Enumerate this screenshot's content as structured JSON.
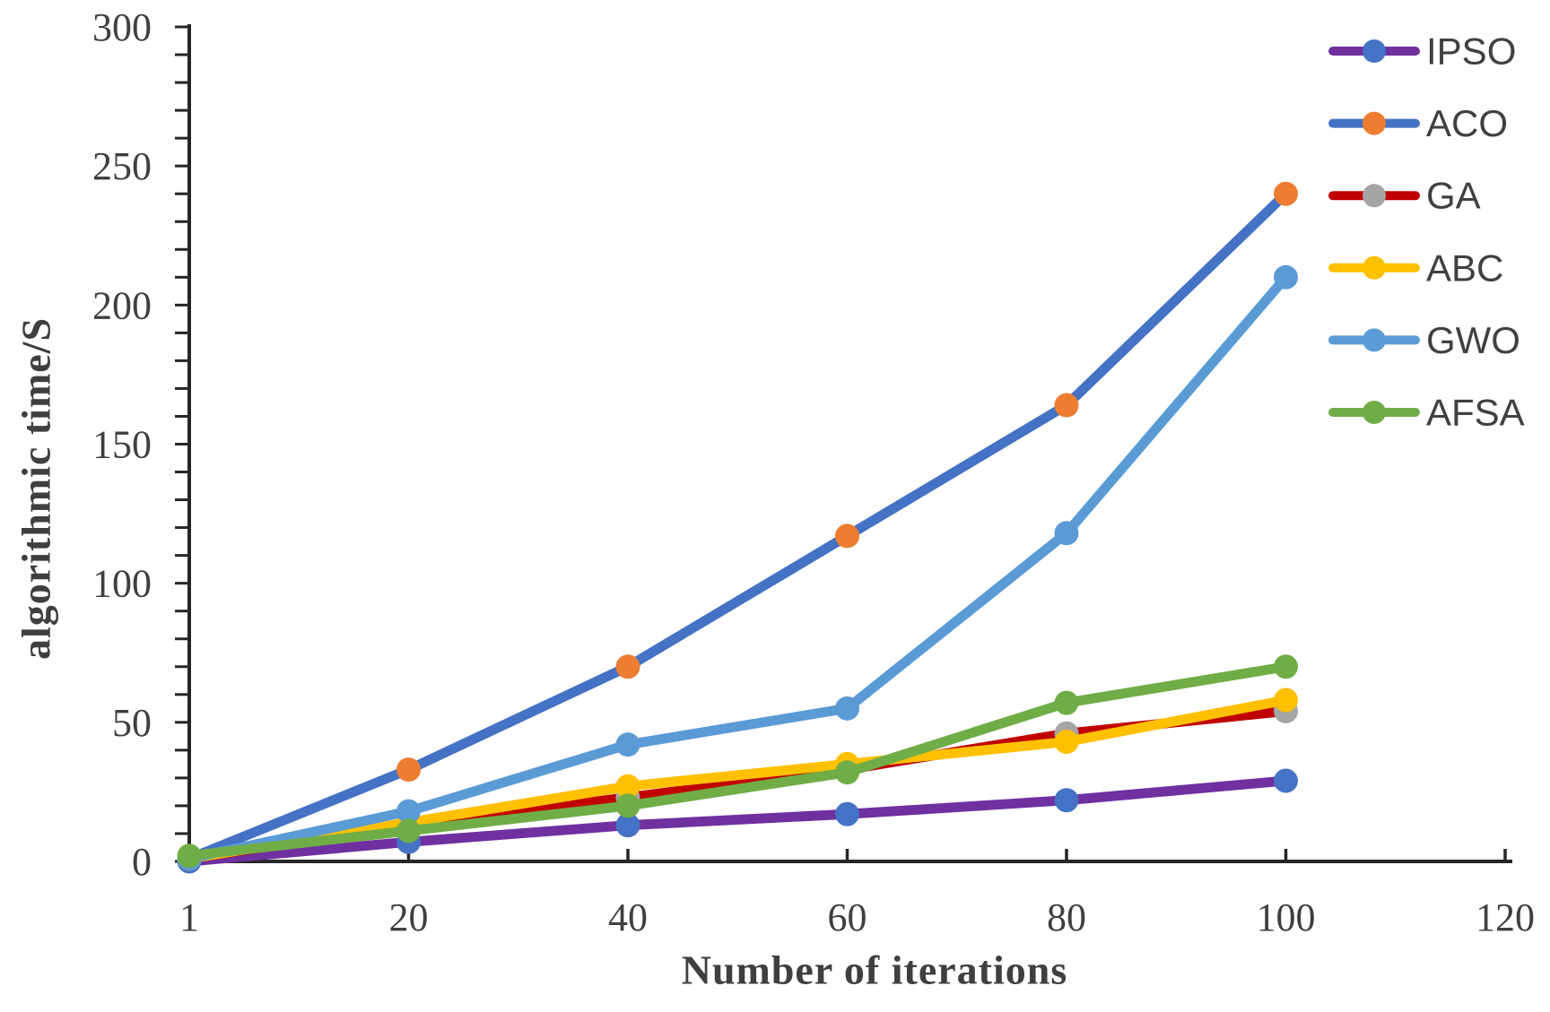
{
  "figure": {
    "background": "#ffffff"
  },
  "chart_data": {
    "type": "line",
    "title": "",
    "xlabel": "Number of iterations",
    "ylabel": "algorithmic time/S",
    "x_tick_labels": [
      "1",
      "20",
      "40",
      "60",
      "80",
      "100",
      "120"
    ],
    "x_categories": [
      1,
      20,
      40,
      60,
      80,
      100
    ],
    "ylim": [
      0,
      300
    ],
    "y_label_step": 50,
    "y_minor_tick_step": 10,
    "grid": false,
    "legend_position": "top-right",
    "axis_color": "#262626",
    "tick_label_color": "#3f3f3f",
    "legend_text_color": "#404040",
    "series": [
      {
        "name": "IPSO",
        "line_color": "#7030A0",
        "marker_color": "#4472C4",
        "values": [
          0,
          7,
          13,
          17,
          22,
          29
        ]
      },
      {
        "name": "ACO",
        "line_color": "#4472C4",
        "marker_color": "#ED7D31",
        "values": [
          1,
          33,
          70,
          117,
          164,
          240
        ]
      },
      {
        "name": "GA",
        "line_color": "#C00000",
        "marker_color": "#A5A5A5",
        "values": [
          1,
          13,
          23,
          33,
          46,
          54
        ]
      },
      {
        "name": "ABC",
        "line_color": "#FFC000",
        "marker_color": "#FFC000",
        "values": [
          1,
          14,
          27,
          35,
          43,
          58
        ]
      },
      {
        "name": "GWO",
        "line_color": "#5B9BD5",
        "marker_color": "#5B9BD5",
        "values": [
          1,
          18,
          42,
          55,
          118,
          210
        ]
      },
      {
        "name": "AFSA",
        "line_color": "#70AD47",
        "marker_color": "#70AD47",
        "values": [
          2,
          11,
          20,
          32,
          57,
          70
        ]
      }
    ]
  }
}
